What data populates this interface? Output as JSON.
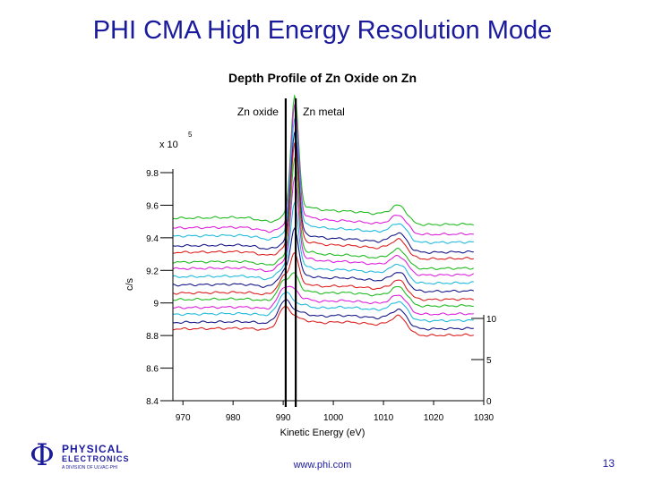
{
  "slide": {
    "title": "PHI CMA High Energy Resolution Mode",
    "url": "www.phi.com",
    "page_number": "13"
  },
  "logo": {
    "symbol": "Φ",
    "line1": "PHYSICAL",
    "line2": "ELECTRONICS",
    "line3": "A DIVISION OF ULVAC-PHI"
  },
  "chart_data": {
    "type": "line",
    "title": "Depth Profile of Zn Oxide on Zn",
    "xlabel": "Kinetic Energy (eV)",
    "ylabel": "c/s",
    "multiplier": "x 10",
    "multiplier_exp": "5",
    "xlim": [
      968,
      1030
    ],
    "ylim": [
      8.4,
      9.8
    ],
    "xticks": [
      970,
      980,
      990,
      1000,
      1010,
      1020,
      1030
    ],
    "yticks": [
      9.8,
      9.6,
      9.4,
      9.2,
      9,
      8.8,
      8.6,
      8.4
    ],
    "right_axis_ticks": [
      "10",
      "5",
      "0"
    ],
    "right_axis_range": [
      0,
      10
    ],
    "grid": false,
    "markers": [
      {
        "label": "Zn oxide",
        "x": 990.5
      },
      {
        "label": "Zn metal",
        "x": 992.5
      }
    ],
    "series": [
      {
        "color": "#22bb22",
        "baseline": 9.52,
        "metal": 1.0,
        "oxide": 0.0
      },
      {
        "color": "#dd22dd",
        "baseline": 9.46,
        "metal": 1.0,
        "oxide": 0.0
      },
      {
        "color": "#22bbdd",
        "baseline": 9.41,
        "metal": 0.95,
        "oxide": 0.05
      },
      {
        "color": "#1a1a8a",
        "baseline": 9.35,
        "metal": 0.92,
        "oxide": 0.08
      },
      {
        "color": "#dd2222",
        "baseline": 9.31,
        "metal": 0.88,
        "oxide": 0.12
      },
      {
        "color": "#22bb22",
        "baseline": 9.25,
        "metal": 0.82,
        "oxide": 0.18
      },
      {
        "color": "#dd22dd",
        "baseline": 9.21,
        "metal": 0.7,
        "oxide": 0.3
      },
      {
        "color": "#22bbdd",
        "baseline": 9.16,
        "metal": 0.55,
        "oxide": 0.45
      },
      {
        "color": "#1a1a8a",
        "baseline": 9.11,
        "metal": 0.4,
        "oxide": 0.6
      },
      {
        "color": "#dd2222",
        "baseline": 9.06,
        "metal": 0.25,
        "oxide": 0.75
      },
      {
        "color": "#22bb22",
        "baseline": 9.02,
        "metal": 0.12,
        "oxide": 0.88
      },
      {
        "color": "#dd22dd",
        "baseline": 8.97,
        "metal": 0.05,
        "oxide": 0.95
      },
      {
        "color": "#22bbdd",
        "baseline": 8.93,
        "metal": 0.0,
        "oxide": 1.0
      },
      {
        "color": "#1a1a8a",
        "baseline": 8.88,
        "metal": 0.0,
        "oxide": 1.0
      },
      {
        "color": "#dd2222",
        "baseline": 8.84,
        "metal": 0.0,
        "oxide": 1.0
      }
    ]
  }
}
